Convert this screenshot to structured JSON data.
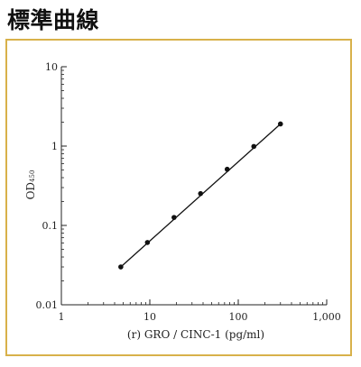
{
  "page": {
    "heading": "標準曲線",
    "frame_color": "#d8b14a"
  },
  "chart_data": {
    "type": "scatter",
    "title": "",
    "xlabel": "(r) GRO / CINC-1 (pg/ml)",
    "ylabel_main": "OD",
    "ylabel_sub": "450",
    "x_scale": "log",
    "y_scale": "log",
    "xlim": [
      1,
      1000
    ],
    "ylim": [
      0.01,
      10
    ],
    "x_ticks": [
      {
        "value": 1,
        "label": "1"
      },
      {
        "value": 10,
        "label": "10"
      },
      {
        "value": 100,
        "label": "100"
      },
      {
        "value": 1000,
        "label": "1,000"
      }
    ],
    "y_ticks": [
      {
        "value": 0.01,
        "label": "0.01"
      },
      {
        "value": 0.1,
        "label": "0.1"
      },
      {
        "value": 1,
        "label": "1"
      },
      {
        "value": 10,
        "label": "10"
      }
    ],
    "grid": false,
    "legend": "none",
    "points": [
      {
        "x": 4.7,
        "y": 0.03
      },
      {
        "x": 9.4,
        "y": 0.061
      },
      {
        "x": 18.8,
        "y": 0.126
      },
      {
        "x": 37.5,
        "y": 0.252
      },
      {
        "x": 75,
        "y": 0.51
      },
      {
        "x": 150,
        "y": 0.99
      },
      {
        "x": 300,
        "y": 1.9
      }
    ],
    "fit_line": [
      {
        "x": 4.7,
        "y": 0.03
      },
      {
        "x": 300,
        "y": 1.9
      }
    ],
    "marker_color": "#111111",
    "line_color": "#111111"
  }
}
